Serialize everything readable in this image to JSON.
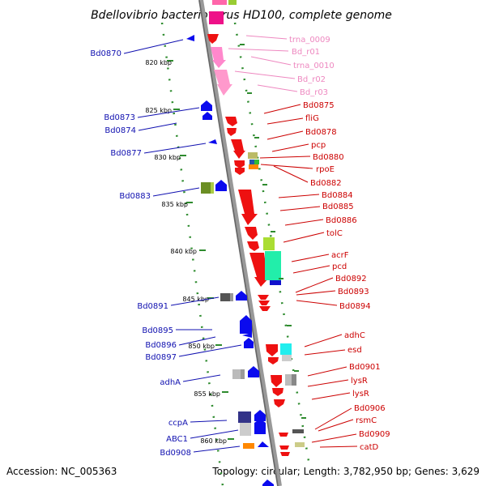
{
  "title": "Bdellovibrio bacteriovorus HD100, complete genome",
  "accession_text": "Accession: NC_005363",
  "summary_text": "Topology: circular; Length: 3,782,950 bp; Genes: 3,629",
  "colors": {
    "left_label": "#1010b0",
    "right_red_label": "#cc0000",
    "right_pink_label": "#ee88c0",
    "blue_feature": "#0a0aee",
    "red_feature": "#ee1111",
    "pink_feature": "#ff99cc",
    "backbone": "#888888",
    "tick": "#2e8b2e"
  },
  "scale_ticks": [
    "820 kbp",
    "825 kbp",
    "830 kbp",
    "835 kbp",
    "840 kbp",
    "845 kbp",
    "850 kbp",
    "855 kbp",
    "860 kbp"
  ],
  "left_labels": [
    "Bd0870",
    "Bd0873",
    "Bd0874",
    "Bd0877",
    "Bd0883",
    "Bd0891",
    "Bd0895",
    "Bd0896",
    "Bd0897",
    "adhA",
    "ccpA",
    "ABC1",
    "Bd0908"
  ],
  "right_pink_labels": [
    "trna_0009",
    "Bd_r01",
    "trna_0010",
    "Bd_r02",
    "Bd_r03"
  ],
  "right_red_labels": [
    "Bd0875",
    "fliG",
    "Bd0878",
    "pcp",
    "Bd0880",
    "rpoE",
    "Bd0882",
    "Bd0884",
    "Bd0885",
    "Bd0886",
    "tolC",
    "acrF",
    "pcd",
    "Bd0892",
    "Bd0893",
    "Bd0894",
    "adhC",
    "esd",
    "Bd0901",
    "lysR",
    "lysR",
    "Bd0906",
    "rsmC",
    "Bd0909",
    "catD"
  ]
}
